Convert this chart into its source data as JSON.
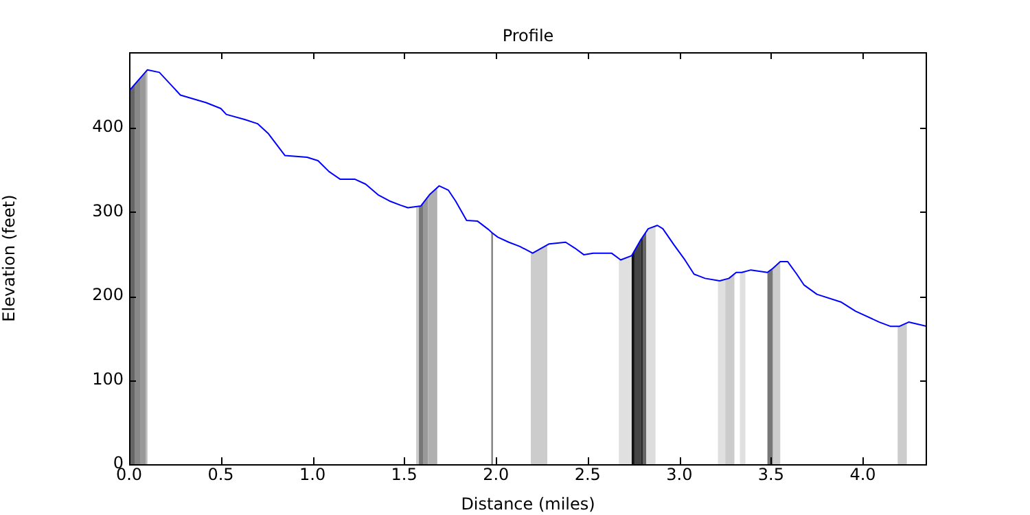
{
  "chart_data": {
    "type": "line",
    "title": "Profile",
    "xlabel": "Distance (miles)",
    "ylabel": "Elevation (feet)",
    "series": [
      {
        "color": "#0000ff",
        "x": [
          0,
          0.1,
          0.165,
          0.28,
          0.42,
          0.5,
          0.53,
          0.63,
          0.7,
          0.76,
          0.85,
          0.97,
          1.03,
          1.09,
          1.15,
          1.23,
          1.29,
          1.36,
          1.42,
          1.48,
          1.52,
          1.59,
          1.64,
          1.69,
          1.74,
          1.78,
          1.84,
          1.9,
          1.96,
          1.98,
          2.01,
          2.07,
          2.13,
          2.2,
          2.29,
          2.38,
          2.43,
          2.48,
          2.53,
          2.63,
          2.68,
          2.74,
          2.79,
          2.83,
          2.88,
          2.91,
          2.97,
          3.03,
          3.08,
          3.14,
          3.22,
          3.27,
          3.31,
          3.34,
          3.39,
          3.48,
          3.51,
          3.55,
          3.59,
          3.64,
          3.68,
          3.75,
          3.88,
          3.96,
          4.09,
          4.15,
          4.2,
          4.25,
          4.35
        ],
        "values": [
          444,
          469,
          466,
          439,
          430,
          423,
          416,
          410,
          405,
          393,
          367,
          365,
          361,
          348,
          339,
          339,
          333,
          320,
          313,
          308,
          305,
          307,
          321,
          331,
          326,
          313,
          290,
          289,
          279,
          275,
          270,
          264,
          259,
          251,
          262,
          264,
          257,
          249,
          251,
          251,
          243,
          248,
          267,
          280,
          284,
          280,
          261,
          243,
          226,
          221,
          218,
          221,
          228,
          228,
          231,
          228,
          233,
          241,
          241,
          226,
          213,
          202,
          193,
          182,
          169,
          164,
          164,
          169,
          164
        ]
      }
    ],
    "bands": [
      {
        "axis": "x",
        "from": 0,
        "to": 0.03,
        "color": "#666666"
      },
      {
        "axis": "x",
        "from": 0.03,
        "to": 0.06,
        "color": "#888888"
      },
      {
        "axis": "x",
        "from": 0.06,
        "to": 0.09,
        "color": "#999999"
      },
      {
        "axis": "x",
        "from": 0.09,
        "to": 0.1,
        "color": "#bbbbbb"
      },
      {
        "axis": "x",
        "from": 1.565,
        "to": 1.58,
        "color": "#cccccc"
      },
      {
        "axis": "x",
        "from": 1.58,
        "to": 1.605,
        "color": "#777777"
      },
      {
        "axis": "x",
        "from": 1.605,
        "to": 1.63,
        "color": "#999999"
      },
      {
        "axis": "x",
        "from": 1.63,
        "to": 1.68,
        "color": "#b0b0b0"
      },
      {
        "axis": "x",
        "from": 1.978,
        "to": 1.984,
        "color": "#888888"
      },
      {
        "axis": "x",
        "from": 2.19,
        "to": 2.28,
        "color": "#cccccc"
      },
      {
        "axis": "x",
        "from": 2.67,
        "to": 2.74,
        "color": "#e0e0e0"
      },
      {
        "axis": "x",
        "from": 2.74,
        "to": 2.755,
        "color": "#111111"
      },
      {
        "axis": "x",
        "from": 2.755,
        "to": 2.79,
        "color": "#444444"
      },
      {
        "axis": "x",
        "from": 2.79,
        "to": 2.8,
        "color": "#222222"
      },
      {
        "axis": "x",
        "from": 2.8,
        "to": 2.82,
        "color": "#666666"
      },
      {
        "axis": "x",
        "from": 2.82,
        "to": 2.87,
        "color": "#dddddd"
      },
      {
        "axis": "x",
        "from": 3.21,
        "to": 3.25,
        "color": "#e0e0e0"
      },
      {
        "axis": "x",
        "from": 3.25,
        "to": 3.3,
        "color": "#cccccc"
      },
      {
        "axis": "x",
        "from": 3.33,
        "to": 3.36,
        "color": "#e0e0e0"
      },
      {
        "axis": "x",
        "from": 3.48,
        "to": 3.51,
        "color": "#777777"
      },
      {
        "axis": "x",
        "from": 3.51,
        "to": 3.55,
        "color": "#cccccc"
      },
      {
        "axis": "x",
        "from": 4.19,
        "to": 4.24,
        "color": "#cccccc"
      }
    ],
    "xlim": [
      0,
      4.35
    ],
    "ylim": [
      0,
      490
    ],
    "xticks": [
      {
        "value": 0,
        "label": "0.0"
      },
      {
        "value": 0.5,
        "label": "0.5"
      },
      {
        "value": 1,
        "label": "1.0"
      },
      {
        "value": 1.5,
        "label": "1.5"
      },
      {
        "value": 2,
        "label": "2.0"
      },
      {
        "value": 2.5,
        "label": "2.5"
      },
      {
        "value": 3,
        "label": "3.0"
      },
      {
        "value": 3.5,
        "label": "3.5"
      },
      {
        "value": 4,
        "label": "4.0"
      }
    ],
    "yticks": [
      0,
      100,
      200,
      300,
      400
    ],
    "grid": false,
    "legend": false,
    "marker": "none",
    "line_style": "solid"
  }
}
